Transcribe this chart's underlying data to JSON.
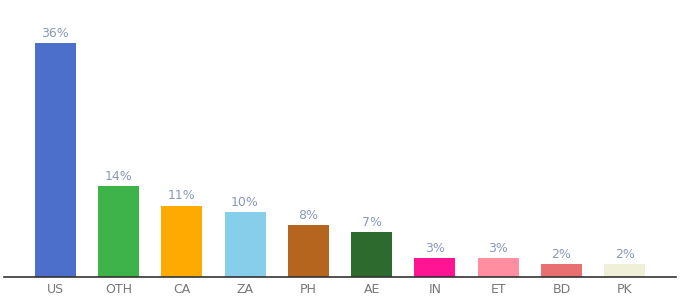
{
  "categories": [
    "US",
    "OTH",
    "CA",
    "ZA",
    "PH",
    "AE",
    "IN",
    "ET",
    "BD",
    "PK"
  ],
  "values": [
    36,
    14,
    11,
    10,
    8,
    7,
    3,
    3,
    2,
    2
  ],
  "bar_colors": [
    "#4d6fcc",
    "#3db34a",
    "#ffaa00",
    "#87ceeb",
    "#b5651d",
    "#2d6a2d",
    "#ff1493",
    "#ff8fa0",
    "#e87070",
    "#f0f0d8"
  ],
  "label_color": "#8899bb",
  "bar_label_fontsize": 9,
  "xlabel_fontsize": 9,
  "ylim": [
    0,
    42
  ],
  "background_color": "#ffffff"
}
